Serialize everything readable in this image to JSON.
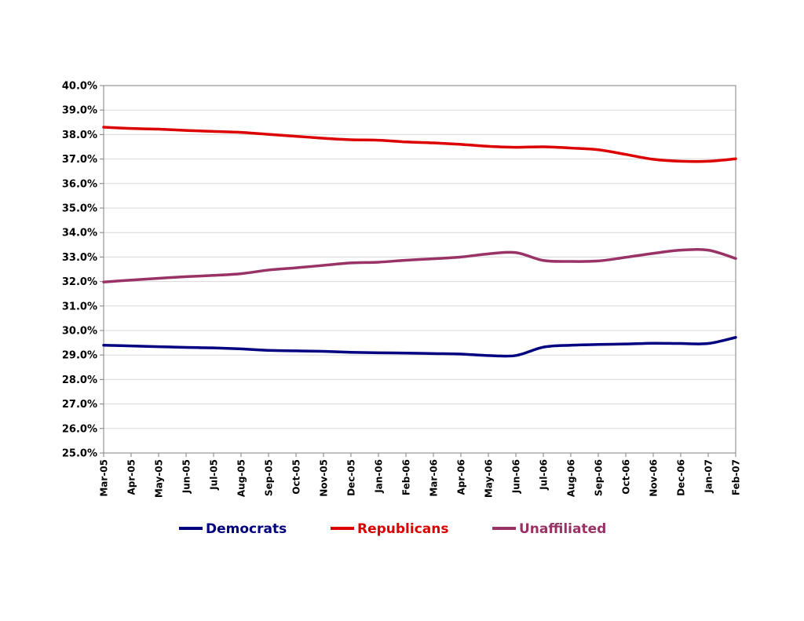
{
  "chart_data": {
    "type": "line",
    "title": "",
    "xlabel": "",
    "ylabel": "",
    "categories": [
      "Mar-05",
      "Apr-05",
      "May-05",
      "Jun-05",
      "Jul-05",
      "Aug-05",
      "Sep-05",
      "Oct-05",
      "Nov-05",
      "Dec-05",
      "Jan-06",
      "Feb-06",
      "Mar-06",
      "Apr-06",
      "May-06",
      "Jun-06",
      "Jul-06",
      "Aug-06",
      "Sep-06",
      "Oct-06",
      "Nov-06",
      "Dec-06",
      "Jan-07",
      "Feb-07"
    ],
    "ylim": [
      25.0,
      40.0
    ],
    "yticks": [
      "25.0%",
      "26.0%",
      "27.0%",
      "28.0%",
      "29.0%",
      "30.0%",
      "31.0%",
      "32.0%",
      "33.0%",
      "34.0%",
      "35.0%",
      "36.0%",
      "37.0%",
      "38.0%",
      "39.0%",
      "40.0%"
    ],
    "grid": true,
    "legend_position": "bottom",
    "series": [
      {
        "name": "Democrats",
        "color": "#000080",
        "values": [
          29.4,
          29.37,
          29.34,
          29.31,
          29.29,
          29.25,
          29.19,
          29.17,
          29.15,
          29.11,
          29.09,
          29.08,
          29.06,
          29.04,
          28.98,
          28.98,
          29.32,
          29.4,
          29.43,
          29.45,
          29.48,
          29.47,
          29.47,
          29.72
        ]
      },
      {
        "name": "Republicans",
        "color": "#dd0000",
        "values": [
          38.3,
          38.25,
          38.22,
          38.17,
          38.13,
          38.09,
          38.01,
          37.93,
          37.85,
          37.79,
          37.77,
          37.7,
          37.66,
          37.6,
          37.52,
          37.48,
          37.5,
          37.45,
          37.38,
          37.19,
          36.99,
          36.91,
          36.91,
          37.01
        ]
      },
      {
        "name": "Unaffiliated",
        "color": "#993366",
        "values": [
          31.98,
          32.06,
          32.13,
          32.2,
          32.25,
          32.32,
          32.47,
          32.56,
          32.66,
          32.76,
          32.79,
          32.87,
          32.93,
          33.0,
          33.13,
          33.18,
          32.86,
          32.82,
          32.84,
          32.99,
          33.15,
          33.28,
          33.28,
          32.94
        ]
      }
    ]
  }
}
